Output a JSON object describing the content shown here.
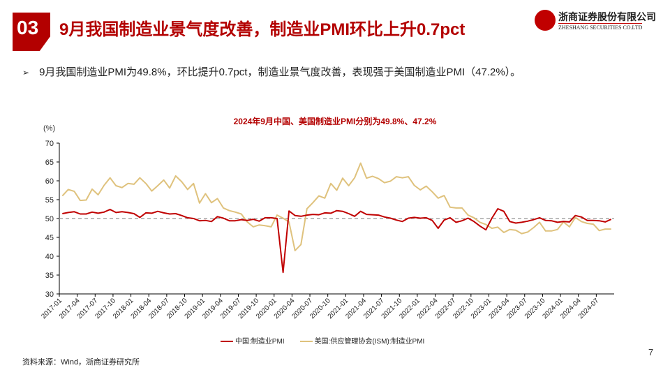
{
  "header": {
    "section_number": "03",
    "title": "9月我国制造业景气度改善，制造业PMI环比上升0.7pct",
    "logo_cn": "浙商证券股份有限公司",
    "logo_en": "ZHESHANG SECURITIES CO.LTD"
  },
  "bullet": {
    "icon": "arrow-bullet-icon",
    "text": "9月我国制造业PMI为49.8%，环比提升0.7pct，制造业景气度改善，表现强于美国制造业PMI（47.2%）。"
  },
  "chart_data": {
    "type": "line",
    "title": "2024年9月中国、美国制造业PMI分别为49.8%、47.2%",
    "ylabel": "(%)",
    "ylim": [
      30,
      70
    ],
    "yticks": [
      "30",
      "35",
      "40",
      "45",
      "50",
      "55",
      "60",
      "65",
      "70"
    ],
    "reference_line": 50,
    "grid": false,
    "legend_position": "bottom",
    "x_start": "2017-01",
    "x_end": "2024-09",
    "xticks": [
      "2017-01",
      "2017-04",
      "2017-07",
      "2017-10",
      "2018-01",
      "2018-04",
      "2018-07",
      "2018-10",
      "2019-01",
      "2019-04",
      "2019-07",
      "2019-10",
      "2020-01",
      "2020-04",
      "2020-07",
      "2020-10",
      "2021-01",
      "2021-04",
      "2021-07",
      "2021-10",
      "2022-01",
      "2022-04",
      "2022-07",
      "2022-10",
      "2023-01",
      "2023-04",
      "2023-07",
      "2023-10",
      "2024-01",
      "2024-04",
      "2024-07"
    ],
    "series": [
      {
        "name": "中国:制造业PMI",
        "color": "#c00000",
        "values": [
          51.3,
          51.6,
          51.8,
          51.2,
          51.2,
          51.7,
          51.4,
          51.7,
          52.4,
          51.6,
          51.8,
          51.6,
          51.3,
          50.3,
          51.5,
          51.4,
          51.9,
          51.5,
          51.2,
          51.3,
          50.8,
          50.2,
          50.0,
          49.4,
          49.5,
          49.2,
          50.5,
          50.1,
          49.4,
          49.4,
          49.7,
          49.5,
          49.8,
          49.3,
          50.2,
          50.2,
          50.0,
          35.7,
          52.0,
          50.8,
          50.6,
          50.9,
          51.1,
          51.0,
          51.5,
          51.4,
          52.1,
          51.9,
          51.3,
          50.6,
          51.9,
          51.1,
          51.0,
          50.9,
          50.4,
          50.1,
          49.6,
          49.2,
          50.1,
          50.3,
          50.1,
          50.2,
          49.5,
          47.4,
          49.6,
          50.2,
          49.0,
          49.4,
          50.1,
          49.2,
          48.0,
          47.0,
          50.1,
          52.6,
          51.9,
          49.2,
          48.8,
          49.0,
          49.3,
          49.7,
          50.2,
          49.5,
          49.4,
          49.0,
          49.2,
          49.1,
          50.8,
          50.4,
          49.5,
          49.5,
          49.4,
          49.1,
          49.8
        ]
      },
      {
        "name": "美国:供应管理协会(ISM):制造业PMI",
        "color": "#dfc27d",
        "values": [
          56.0,
          57.7,
          57.2,
          54.8,
          54.9,
          57.8,
          56.3,
          58.8,
          60.8,
          58.7,
          58.2,
          59.3,
          59.1,
          60.8,
          59.3,
          57.3,
          58.7,
          60.2,
          58.1,
          61.3,
          59.8,
          57.7,
          59.3,
          54.1,
          56.6,
          54.2,
          55.3,
          52.8,
          52.1,
          51.7,
          51.2,
          49.1,
          47.8,
          48.3,
          48.1,
          47.8,
          50.9,
          50.1,
          49.1,
          41.5,
          43.1,
          52.6,
          54.2,
          56.0,
          55.4,
          59.3,
          57.5,
          60.7,
          58.7,
          60.8,
          64.7,
          60.7,
          61.2,
          60.6,
          59.5,
          59.9,
          61.1,
          60.8,
          61.1,
          58.8,
          57.6,
          58.6,
          57.1,
          55.4,
          56.1,
          53.0,
          52.8,
          52.8,
          50.9,
          50.2,
          49.0,
          48.4,
          47.4,
          47.7,
          46.3,
          47.1,
          46.9,
          46.0,
          46.4,
          47.6,
          49.0,
          46.7,
          46.7,
          47.1,
          49.1,
          47.8,
          50.3,
          49.2,
          48.7,
          48.5,
          46.8,
          47.2,
          47.2
        ]
      }
    ]
  },
  "source": "资料来源：Wind，浙商证券研究所",
  "page_number": "7"
}
